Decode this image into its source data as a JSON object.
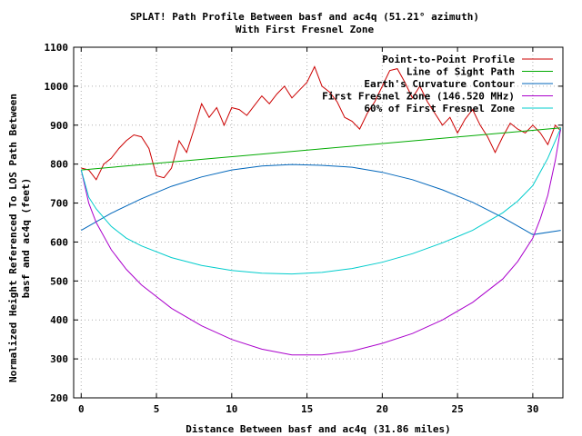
{
  "chart_data": {
    "type": "line",
    "title": "SPLAT! Path Profile Between basf and ac4q (51.21° azimuth)",
    "subtitle": "With First Fresnel Zone",
    "xlabel": "Distance Between basf and ac4q (31.86 miles)",
    "ylabel_line1": "Normalized Height Referenced To LOS Path Between",
    "ylabel_line2": "basf and ac4q (feet)",
    "xlim": [
      -0.5,
      32
    ],
    "ylim": [
      200,
      1100
    ],
    "x_ticks": [
      0,
      5,
      10,
      15,
      20,
      25,
      30
    ],
    "y_ticks": [
      200,
      300,
      400,
      500,
      600,
      700,
      800,
      900,
      1000,
      1100
    ],
    "grid": true,
    "legend_position": "top-right",
    "series": [
      {
        "name": "Point-to-Point Profile",
        "color": "#cc0000",
        "x": [
          0,
          0.5,
          1,
          1.5,
          2,
          2.5,
          3,
          3.5,
          4,
          4.5,
          5,
          5.5,
          6,
          6.5,
          7,
          7.5,
          8,
          8.5,
          9,
          9.5,
          10,
          10.5,
          11,
          11.5,
          12,
          12.5,
          13,
          13.5,
          14,
          14.5,
          15,
          15.5,
          16,
          16.5,
          17,
          17.5,
          18,
          18.5,
          19,
          19.5,
          20,
          20.5,
          21,
          21.5,
          22,
          22.5,
          23,
          23.5,
          24,
          24.5,
          25,
          25.5,
          26,
          26.5,
          27,
          27.5,
          28,
          28.5,
          29,
          29.5,
          30,
          30.5,
          31,
          31.5,
          31.86
        ],
        "values": [
          790,
          785,
          760,
          800,
          815,
          840,
          860,
          875,
          870,
          840,
          770,
          765,
          790,
          860,
          830,
          890,
          955,
          920,
          945,
          900,
          945,
          940,
          925,
          950,
          975,
          955,
          980,
          1000,
          970,
          990,
          1010,
          1050,
          1000,
          985,
          960,
          920,
          910,
          890,
          930,
          960,
          1000,
          1040,
          1045,
          1010,
          970,
          1000,
          960,
          930,
          900,
          920,
          880,
          915,
          940,
          900,
          870,
          830,
          870,
          905,
          890,
          880,
          900,
          880,
          850,
          900,
          885
        ]
      },
      {
        "name": "Line of Sight Path",
        "color": "#00aa00",
        "x": [
          0,
          31.86
        ],
        "values": [
          785,
          893
        ]
      },
      {
        "name": "Earth's Curvature Contour",
        "color": "#0066bb",
        "x": [
          0,
          2,
          4,
          6,
          8,
          10,
          12,
          14,
          15.93,
          18,
          20,
          22,
          24,
          26,
          28,
          30,
          31.86
        ],
        "values": [
          630,
          674,
          711,
          743,
          767,
          785,
          795,
          799,
          797,
          792,
          779,
          760,
          734,
          702,
          663,
          619,
          630
        ]
      },
      {
        "name": "First Fresnel Zone (146.520 MHz)",
        "color": "#aa00cc",
        "x": [
          0,
          0.5,
          1,
          2,
          3,
          4,
          6,
          8,
          10,
          12,
          14,
          16,
          18,
          20,
          22,
          24,
          26,
          28,
          29,
          30,
          30.5,
          31,
          31.5,
          31.86
        ],
        "values": [
          785,
          700,
          650,
          580,
          530,
          490,
          430,
          385,
          350,
          325,
          310,
          310,
          320,
          340,
          365,
          400,
          445,
          505,
          550,
          610,
          660,
          720,
          810,
          893
        ]
      },
      {
        "name": "60% of First Fresnel Zone",
        "color": "#00cccc",
        "x": [
          0,
          0.5,
          1,
          2,
          3,
          4,
          6,
          8,
          10,
          12,
          14,
          16,
          18,
          20,
          22,
          24,
          26,
          28,
          29,
          30,
          30.5,
          31,
          31.5,
          31.86
        ],
        "values": [
          785,
          715,
          685,
          640,
          610,
          590,
          560,
          540,
          527,
          520,
          518,
          522,
          532,
          548,
          570,
          598,
          630,
          675,
          705,
          745,
          780,
          815,
          860,
          893
        ]
      }
    ]
  }
}
